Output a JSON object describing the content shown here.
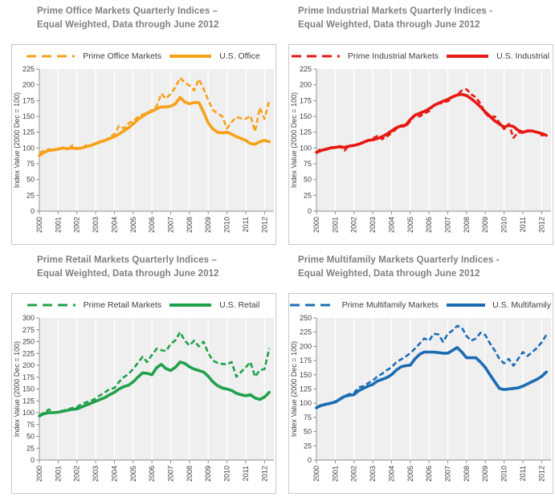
{
  "style": {
    "plot_bg": "#efefef",
    "grid_color": "#ffffff",
    "axis_color": "#8f8f8f",
    "tick_text_color": "#3f3f3f",
    "title_color": "#7f7f7f",
    "box_border_color": "#c9c9c9"
  },
  "chart_data": [
    {
      "type": "line",
      "title_line1": "Prime Office Markets Quarterly Indices –",
      "title_line2": "Equal Weighted, Data through June 2012",
      "ylabel": "Index Value (2000 Dec = 100)",
      "color": "#F7A11A",
      "ymax": 225,
      "ystep": 25,
      "x_min": 2000,
      "x_max": 2012.5,
      "x_step": 0.25,
      "x_ticks": [
        2000,
        2001,
        2002,
        2003,
        2004,
        2005,
        2006,
        2007,
        2008,
        2009,
        2010,
        2011,
        2012
      ],
      "legend_position": "top",
      "grid": "vertical-only",
      "series": [
        {
          "name": "Prime Office Markets",
          "style": "dashed",
          "values": [
            92,
            96,
            98,
            97,
            99,
            101,
            97,
            104,
            100,
            98,
            105,
            104,
            106,
            109,
            112,
            117,
            122,
            135,
            131,
            139,
            143,
            149,
            153,
            156,
            160,
            166,
            186,
            178,
            186,
            196,
            211,
            204,
            199,
            191,
            209,
            194,
            176,
            160,
            155,
            150,
            131,
            141,
            149,
            147,
            146,
            151,
            126,
            164,
            146,
            175
          ]
        },
        {
          "name": "U.S. Office",
          "style": "solid",
          "values": [
            88,
            93,
            96,
            97,
            98,
            100,
            99,
            100,
            99,
            100,
            102,
            104,
            107,
            110,
            112,
            115,
            118,
            122,
            127,
            132,
            138,
            145,
            150,
            155,
            158,
            162,
            165,
            165,
            166,
            170,
            180,
            173,
            170,
            172,
            172,
            157,
            140,
            130,
            125,
            124,
            125,
            122,
            118,
            115,
            112,
            107,
            106,
            110,
            112,
            110
          ]
        }
      ]
    },
    {
      "type": "line",
      "title_line1": "Prime Industrial Markets Quarterly Indices -",
      "title_line2": "Equal Weighted, Data through June 2012",
      "ylabel": "Index Value (2000 Dec = 100)",
      "color": "#E61914",
      "ymax": 225,
      "ystep": 25,
      "x_min": 2000,
      "x_max": 2012.5,
      "x_step": 0.25,
      "x_ticks": [
        2000,
        2001,
        2002,
        2003,
        2004,
        2005,
        2006,
        2007,
        2008,
        2009,
        2010,
        2011,
        2012
      ],
      "legend_position": "top",
      "grid": "vertical-only",
      "series": [
        {
          "name": "Prime Industrial Markets",
          "style": "dashed",
          "values": [
            93,
            99,
            97,
            101,
            100,
            103,
            96,
            104,
            104,
            106,
            108,
            112,
            115,
            119,
            114,
            118,
            124,
            130,
            134,
            134,
            142,
            152,
            150,
            155,
            158,
            168,
            170,
            172,
            174,
            180,
            184,
            191,
            193,
            185,
            180,
            170,
            155,
            148,
            150,
            140,
            130,
            138,
            116,
            125,
            124,
            128,
            126,
            125,
            120,
            121
          ]
        },
        {
          "name": "U.S. Industrial",
          "style": "solid",
          "values": [
            93,
            96,
            98,
            100,
            101,
            102,
            101,
            103,
            104,
            106,
            109,
            112,
            113,
            115,
            118,
            122,
            127,
            132,
            135,
            136,
            145,
            152,
            155,
            158,
            162,
            167,
            171,
            174,
            177,
            181,
            184,
            185,
            183,
            178,
            172,
            165,
            157,
            150,
            143,
            138,
            133,
            136,
            134,
            128,
            125,
            127,
            127,
            125,
            123,
            120
          ]
        }
      ]
    },
    {
      "type": "line",
      "title_line1": "Prime Retail Markets Quarterly Indices –",
      "title_line2": "Equal Weighted, Data through June 2012",
      "ylabel": "Index Value (2000 Dec = 100)",
      "color": "#21A14B",
      "ymax": 300,
      "ystep": 25,
      "x_min": 2000,
      "x_max": 2012.5,
      "x_step": 0.25,
      "x_ticks": [
        2000,
        2001,
        2002,
        2003,
        2004,
        2005,
        2006,
        2007,
        2008,
        2009,
        2010,
        2011,
        2012
      ],
      "legend_position": "top",
      "grid": "vertical-only",
      "series": [
        {
          "name": "Prime Retail Markets",
          "style": "dashed",
          "values": [
            95,
            100,
            107,
            101,
            101,
            104,
            107,
            110,
            112,
            118,
            122,
            125,
            130,
            137,
            143,
            150,
            152,
            165,
            175,
            182,
            192,
            205,
            218,
            207,
            222,
            235,
            232,
            230,
            245,
            253,
            270,
            252,
            242,
            252,
            240,
            250,
            226,
            210,
            205,
            203,
            202,
            207,
            176,
            186,
            196,
            207,
            176,
            190,
            192,
            236
          ]
        },
        {
          "name": "U.S. Retail",
          "style": "solid",
          "values": [
            93,
            98,
            100,
            100,
            101,
            103,
            105,
            107,
            108,
            112,
            116,
            120,
            124,
            128,
            132,
            138,
            143,
            150,
            155,
            158,
            165,
            175,
            184,
            183,
            180,
            195,
            202,
            193,
            189,
            196,
            207,
            204,
            197,
            192,
            189,
            186,
            177,
            165,
            157,
            152,
            150,
            147,
            141,
            138,
            136,
            138,
            131,
            128,
            133,
            143
          ]
        }
      ]
    },
    {
      "type": "line",
      "title_line1": "Prime Multifamily Markets Quarterly Indices -",
      "title_line2": "Equal Weighted, Data through June 2012",
      "ylabel": "Index Value (2000 Dec = 100)",
      "color": "#1C6CB4",
      "ymax": 250,
      "ystep": 25,
      "x_min": 2000,
      "x_max": 2012.5,
      "x_step": 0.25,
      "x_ticks": [
        2000,
        2001,
        2002,
        2003,
        2004,
        2005,
        2006,
        2007,
        2008,
        2009,
        2010,
        2011,
        2012
      ],
      "legend_position": "top",
      "grid": "vertical-only",
      "series": [
        {
          "name": "Prime Multifamily Markets",
          "style": "dashed",
          "values": [
            93,
            97,
            99,
            100,
            103,
            108,
            113,
            116,
            118,
            128,
            130,
            135,
            140,
            147,
            152,
            158,
            163,
            172,
            177,
            182,
            188,
            196,
            205,
            214,
            210,
            222,
            221,
            208,
            222,
            228,
            236,
            233,
            218,
            210,
            214,
            224,
            220,
            205,
            193,
            178,
            170,
            178,
            166,
            178,
            190,
            183,
            190,
            197,
            207,
            220
          ]
        },
        {
          "name": "U.S. Multifamily",
          "style": "solid",
          "values": [
            92,
            96,
            98,
            100,
            102,
            107,
            112,
            114,
            115,
            122,
            126,
            130,
            133,
            139,
            142,
            145,
            150,
            158,
            164,
            166,
            167,
            178,
            186,
            190,
            190,
            190,
            189,
            188,
            188,
            193,
            198,
            190,
            180,
            180,
            180,
            172,
            163,
            150,
            138,
            126,
            124,
            125,
            126,
            127,
            130,
            134,
            138,
            142,
            147,
            155
          ]
        }
      ]
    }
  ]
}
